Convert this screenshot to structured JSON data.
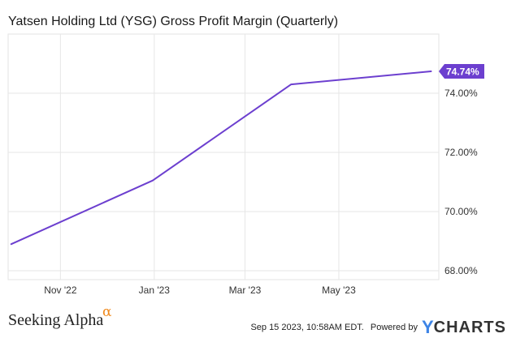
{
  "chart_data": {
    "type": "line",
    "title": "Yatsen Holding Ltd (YSG) Gross Profit Margin (Quarterly)",
    "xlabel": "",
    "ylabel": "",
    "x_tick_labels": [
      "Nov '22",
      "Jan '23",
      "Mar '23",
      "May '23"
    ],
    "y_tick_labels": [
      "68.00%",
      "70.00%",
      "72.00%",
      "74.00%"
    ],
    "y_ticks": [
      68,
      70,
      72,
      74
    ],
    "ylim": [
      67.7,
      76.0
    ],
    "series": [
      {
        "name": "Gross Profit Margin",
        "color": "#6c3fcf",
        "x": [
          "2022-09-30",
          "2022-12-31",
          "2023-03-31",
          "2023-06-30"
        ],
        "values": [
          68.9,
          71.05,
          74.3,
          74.74
        ]
      }
    ],
    "last_value_label": "74.74%",
    "grid": true
  },
  "footer": {
    "brand_text": "Seeking Alpha",
    "brand_glyph": "α",
    "timestamp": "Sep 15 2023, 10:58AM EDT.",
    "powered_by": "Powered by",
    "ycharts_y": "Y",
    "ycharts_word": "CHARTS"
  },
  "colors": {
    "line": "#6c3fcf",
    "badge_bg": "#6c3fcf",
    "grid": "#e6e6e6",
    "axis_text": "#333333",
    "brand_alpha": "#f08a1e",
    "ycharts_blue": "#3d84e6"
  }
}
